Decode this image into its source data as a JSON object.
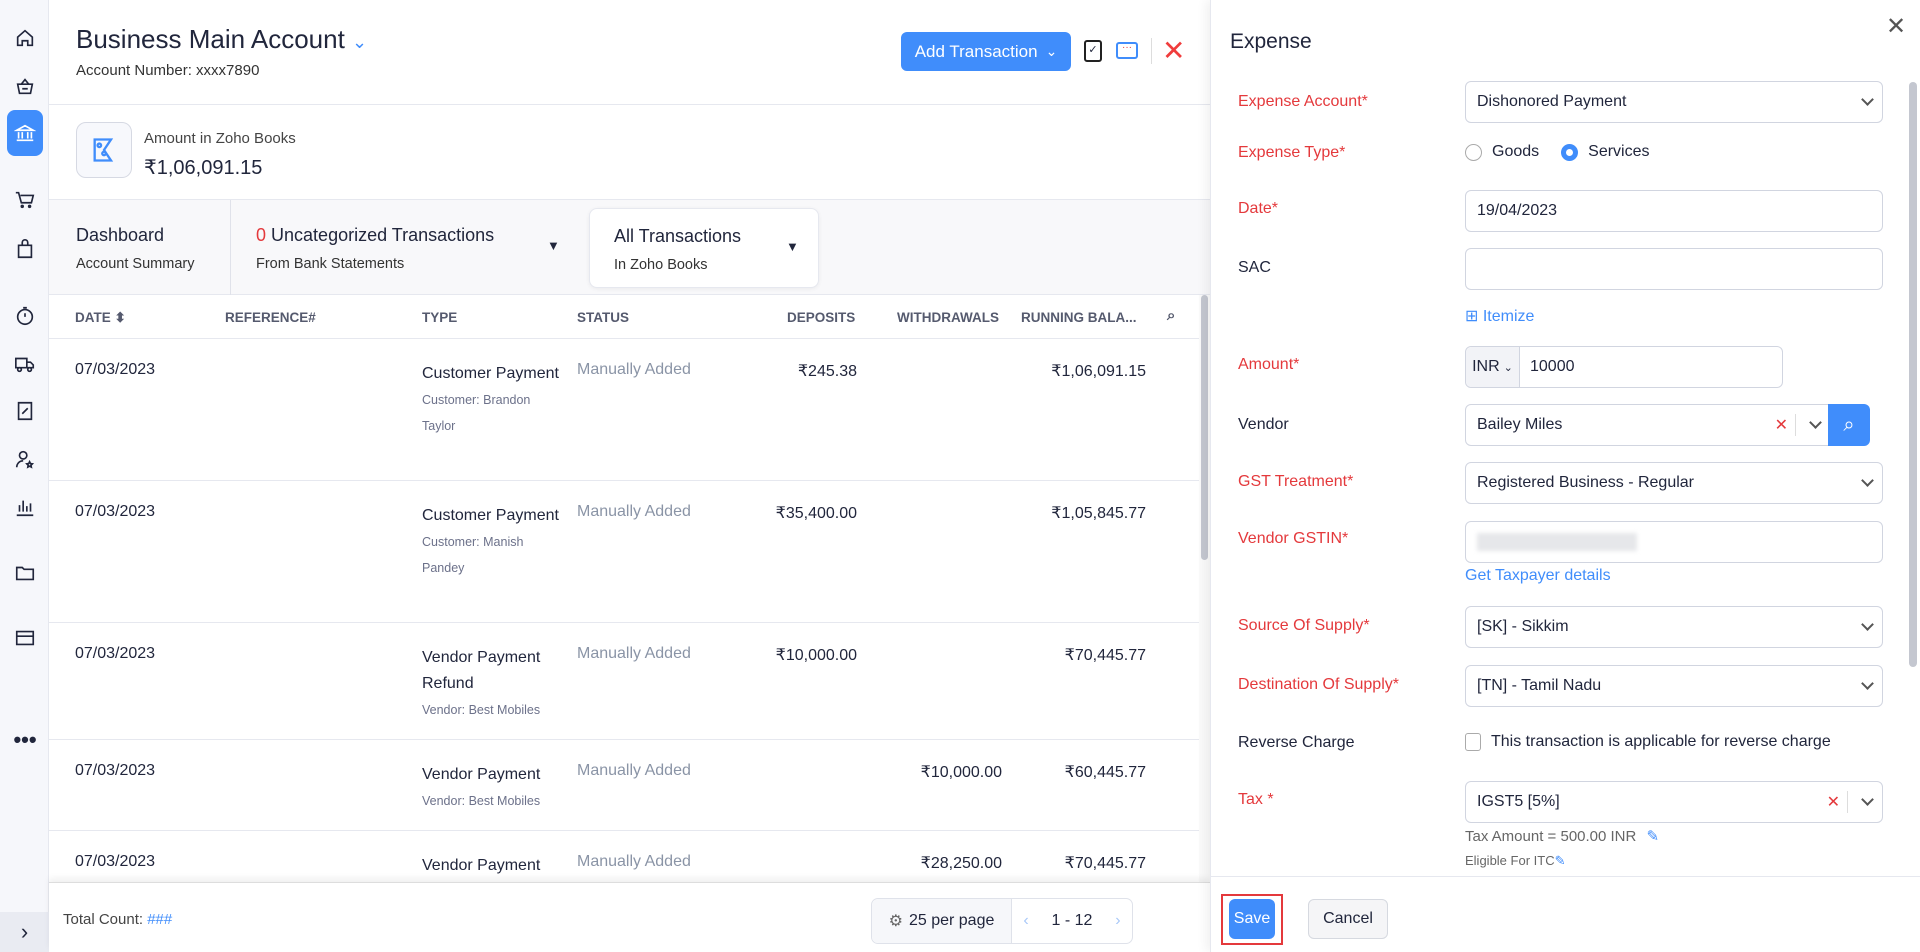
{
  "sidebar": {
    "items": [
      "home",
      "sales",
      "banking",
      "purchases",
      "bag",
      "time-tracking",
      "e-way-bills",
      "gst-filing",
      "accountant",
      "reports",
      "documents",
      "payments",
      "more"
    ],
    "active": "banking"
  },
  "header": {
    "title": "Business Main Account",
    "account_number": "Account Number: xxxx7890",
    "add_transaction": "Add Transaction"
  },
  "amount": {
    "label": "Amount in Zoho Books",
    "value": "₹1,06,091.15"
  },
  "tabs": [
    {
      "title": "Dashboard",
      "subtitle": "Account Summary"
    },
    {
      "count": "0",
      "title": "Uncategorized Transactions",
      "subtitle": "From Bank Statements"
    },
    {
      "title": "All Transactions",
      "subtitle": "In Zoho Books",
      "active": true
    }
  ],
  "table": {
    "columns": [
      "DATE",
      "REFERENCE#",
      "TYPE",
      "STATUS",
      "DEPOSITS",
      "WITHDRAWALS",
      "RUNNING BALA..."
    ],
    "rows": [
      {
        "date": "07/03/2023",
        "type": "Customer Payment",
        "sub": "Customer: Brandon Taylor",
        "status": "Manually Added",
        "deposit": "₹245.38",
        "withdrawal": "",
        "balance": "₹1,06,091.15"
      },
      {
        "date": "07/03/2023",
        "type": "Customer Payment",
        "sub": "Customer: Manish Pandey",
        "status": "Manually Added",
        "deposit": "₹35,400.00",
        "withdrawal": "",
        "balance": "₹1,05,845.77"
      },
      {
        "date": "07/03/2023",
        "type": "Vendor Payment Refund",
        "sub": "Vendor: Best Mobiles",
        "status": "Manually Added",
        "deposit": "₹10,000.00",
        "withdrawal": "",
        "balance": "₹70,445.77"
      },
      {
        "date": "07/03/2023",
        "type": "Vendor Payment",
        "sub": "Vendor: Best Mobiles",
        "status": "Manually Added",
        "deposit": "",
        "withdrawal": "₹10,000.00",
        "balance": "₹60,445.77"
      },
      {
        "date": "07/03/2023",
        "type": "Vendor Payment",
        "sub": "",
        "status": "Manually Added",
        "deposit": "",
        "withdrawal": "₹28,250.00",
        "balance": "₹70,445.77"
      }
    ]
  },
  "footer": {
    "total_label": "Total Count:",
    "total_value": "###",
    "per_page": "25 per page",
    "range": "1 - 12"
  },
  "drawer": {
    "title": "Expense",
    "expense_account_label": "Expense Account*",
    "expense_account": "Dishonored Payment",
    "expense_type_label": "Expense Type*",
    "goods": "Goods",
    "services": "Services",
    "expense_type_selected": "Services",
    "date_label": "Date*",
    "date": "19/04/2023",
    "sac_label": "SAC",
    "sac": "",
    "itemize": "Itemize",
    "amount_label": "Amount*",
    "currency": "INR",
    "amount": "10000",
    "vendor_label": "Vendor",
    "vendor": "Bailey Miles",
    "gst_treatment_label": "GST Treatment*",
    "gst_treatment": "Registered Business - Regular",
    "vendor_gstin_label": "Vendor GSTIN*",
    "taxpayer_link": "Get Taxpayer details",
    "source_label": "Source Of Supply*",
    "source": "[SK] - Sikkim",
    "destination_label": "Destination Of Supply*",
    "destination": "[TN] - Tamil Nadu",
    "reverse_label": "Reverse Charge",
    "reverse_text": "This transaction is applicable for reverse charge",
    "reverse_checked": false,
    "tax_label": "Tax *",
    "tax": "IGST5 [5%]",
    "tax_amount": "Tax Amount = 500.00 INR",
    "itc": "Eligible For ITC",
    "save": "Save",
    "cancel": "Cancel"
  },
  "colors": {
    "accent": "#408dfb",
    "required": "#e4393c",
    "close": "#f03c3c"
  }
}
